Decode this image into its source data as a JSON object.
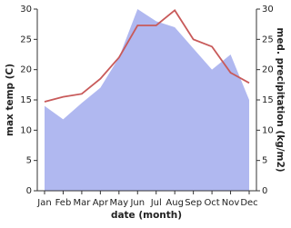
{
  "chart_data": {
    "type": "line_area",
    "x_label": "date (month)",
    "y_label": "max temp (C)",
    "y2_label": "med. precipitation (kg/m2)",
    "categories": [
      "Jan",
      "Feb",
      "Mar",
      "Apr",
      "May",
      "Jun",
      "Jul",
      "Aug",
      "Sep",
      "Oct",
      "Nov",
      "Dec"
    ],
    "series": [
      {
        "name": "max temp",
        "kind": "line",
        "color": "#c85a5a",
        "values": [
          14.7,
          15.5,
          16,
          18.5,
          22,
          27.3,
          27.3,
          29.8,
          25,
          23.8,
          19.5,
          17.8
        ]
      },
      {
        "name": "med. precipitation",
        "kind": "area",
        "axis": "y2",
        "color": "#b0b8f0",
        "values": [
          14,
          11.8,
          14.5,
          17,
          22,
          30,
          28,
          27,
          23.5,
          20,
          22.5,
          15
        ]
      }
    ],
    "ylim": [
      0,
      30
    ],
    "yticks": [
      0,
      5,
      10,
      15,
      20,
      25,
      30
    ],
    "y2lim": [
      0,
      30
    ],
    "y2ticks": [
      0,
      5,
      10,
      15,
      20,
      25,
      30
    ]
  }
}
